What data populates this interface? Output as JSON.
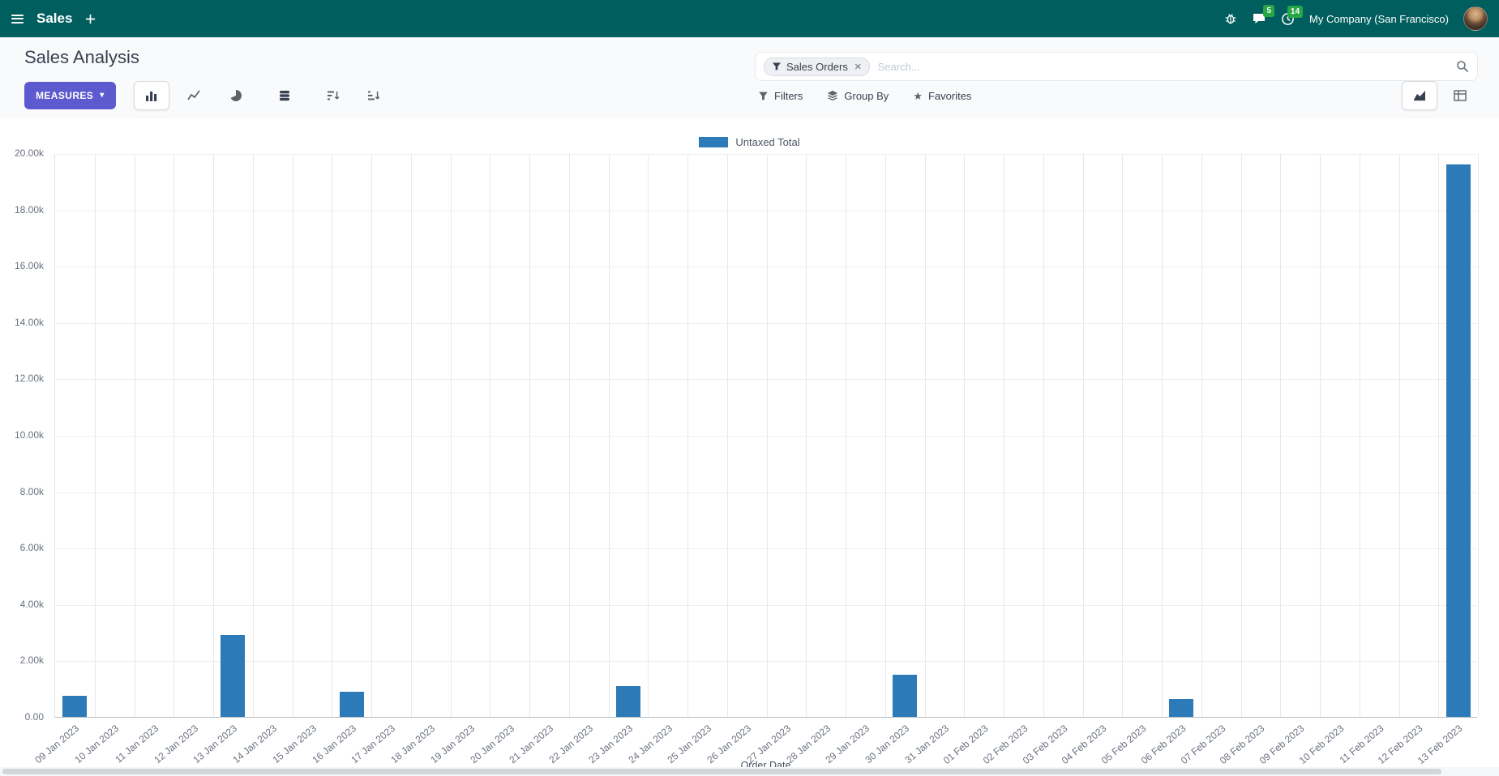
{
  "colors": {
    "navbar_bg": "#015e5e",
    "primary_button": "#5d5ad0",
    "bar": "#2c7bb8",
    "badge": "#28a745",
    "page_title": "#374151"
  },
  "navbar": {
    "app_title": "Sales",
    "company_name": "My Company (San Francisco)",
    "messages_badge": "5",
    "activities_badge": "14"
  },
  "control_panel": {
    "title": "Sales Analysis",
    "measures_label": "MEASURES",
    "filters_label": "Filters",
    "group_by_label": "Group By",
    "favorites_label": "Favorites"
  },
  "search": {
    "facet_label": "Sales Orders",
    "facet_remove": "×",
    "placeholder": "Search..."
  },
  "icons": {
    "caret_down": "▾",
    "favorites_star": "★"
  },
  "chart_data": {
    "type": "bar",
    "title": "",
    "xlabel": "Order Date",
    "ylabel": "",
    "ylim": [
      0,
      20000
    ],
    "y_tick_step": 2000,
    "grid": true,
    "legend_position": "top-center",
    "legend": [
      "Untaxed Total"
    ],
    "categories": [
      "09 Jan 2023",
      "10 Jan 2023",
      "11 Jan 2023",
      "12 Jan 2023",
      "13 Jan 2023",
      "14 Jan 2023",
      "15 Jan 2023",
      "16 Jan 2023",
      "17 Jan 2023",
      "18 Jan 2023",
      "19 Jan 2023",
      "20 Jan 2023",
      "21 Jan 2023",
      "22 Jan 2023",
      "23 Jan 2023",
      "24 Jan 2023",
      "25 Jan 2023",
      "26 Jan 2023",
      "27 Jan 2023",
      "28 Jan 2023",
      "29 Jan 2023",
      "30 Jan 2023",
      "31 Jan 2023",
      "01 Feb 2023",
      "02 Feb 2023",
      "03 Feb 2023",
      "04 Feb 2023",
      "05 Feb 2023",
      "06 Feb 2023",
      "07 Feb 2023",
      "08 Feb 2023",
      "09 Feb 2023",
      "10 Feb 2023",
      "11 Feb 2023",
      "12 Feb 2023",
      "13 Feb 2023"
    ],
    "values": [
      750,
      0,
      0,
      0,
      2900,
      0,
      0,
      900,
      0,
      0,
      0,
      0,
      0,
      0,
      1100,
      0,
      0,
      0,
      0,
      0,
      0,
      1500,
      0,
      0,
      0,
      0,
      0,
      0,
      620,
      0,
      0,
      0,
      0,
      0,
      0,
      19600
    ]
  }
}
